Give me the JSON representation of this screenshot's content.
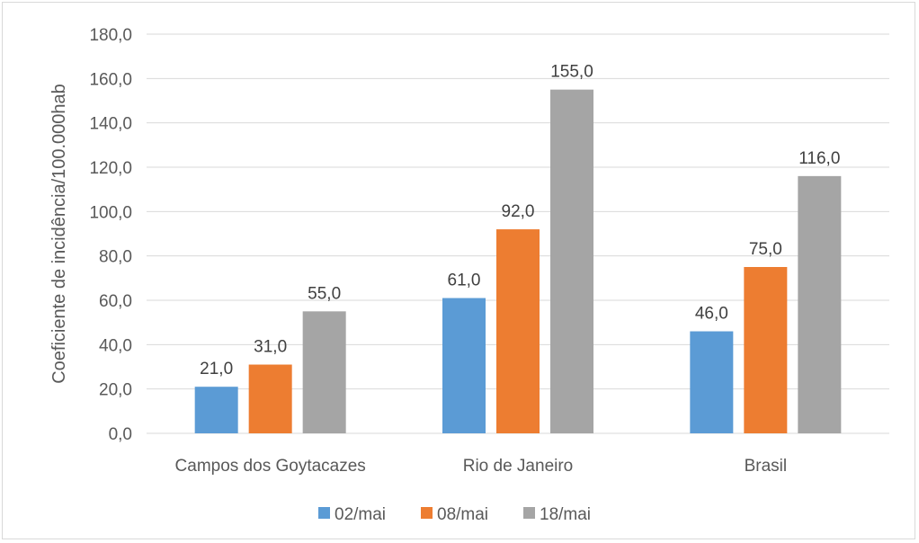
{
  "chart_data": {
    "type": "bar",
    "title": "",
    "xlabel": "",
    "ylabel": "Coeficiente de incidência/100.000hab",
    "categories": [
      "Campos dos Goytacazes",
      "Rio de Janeiro",
      "Brasil"
    ],
    "series": [
      {
        "name": "02/mai",
        "values": [
          21.0,
          61.0,
          46.0
        ],
        "color": "#5b9bd5"
      },
      {
        "name": "08/mai",
        "values": [
          31.0,
          92.0,
          75.0
        ],
        "color": "#ed7d31"
      },
      {
        "name": "18/mai",
        "values": [
          55.0,
          155.0,
          116.0
        ],
        "color": "#a5a5a5"
      }
    ],
    "data_labels": [
      [
        "21,0",
        "61,0",
        "46,0"
      ],
      [
        "31,0",
        "92,0",
        "75,0"
      ],
      [
        "55,0",
        "155,0",
        "116,0"
      ]
    ],
    "ylim": [
      0,
      180
    ],
    "y_ticks": [
      0,
      20,
      40,
      60,
      80,
      100,
      120,
      140,
      160,
      180
    ],
    "y_tick_labels": [
      "0,0",
      "20,0",
      "40,0",
      "60,0",
      "80,0",
      "100,0",
      "120,0",
      "140,0",
      "160,0",
      "180,0"
    ],
    "grid": true,
    "legend_position": "bottom",
    "gridline_color": "#d9d9d9"
  }
}
